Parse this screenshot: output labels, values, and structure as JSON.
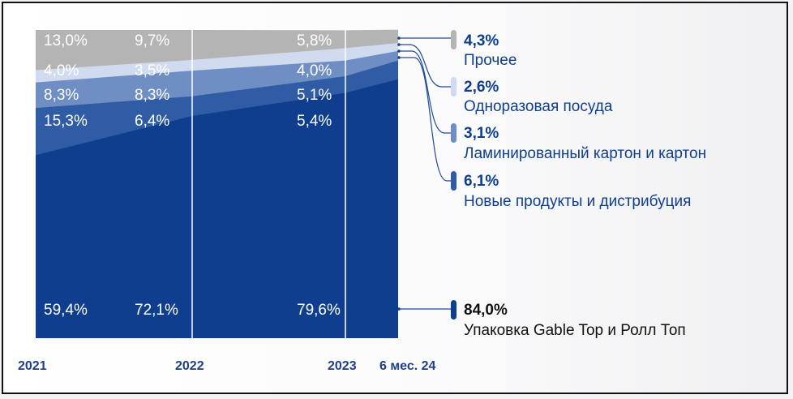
{
  "chart_data": {
    "type": "area",
    "stacked": true,
    "normalized_percent": true,
    "categories": [
      "2021",
      "2022",
      "2023",
      "6 мес. 24"
    ],
    "series": [
      {
        "name": "Упаковка Gable Top и Ролл Топ",
        "color": "#0f3e8e",
        "values": [
          59.4,
          72.1,
          79.6,
          84.0
        ],
        "labels": [
          "59,4%",
          "72,1%",
          "79,6%",
          "84,0%"
        ]
      },
      {
        "name": "Новые продукты и дистрибуция",
        "color": "#2f5ca5",
        "values": [
          15.3,
          6.4,
          5.4,
          6.1
        ],
        "labels": [
          "15,3%",
          "6,4%",
          "5,4%",
          "6,1%"
        ]
      },
      {
        "name": "Ламинированный картон и картон",
        "color": "#6e8ec4",
        "values": [
          8.3,
          8.3,
          5.1,
          3.1
        ],
        "labels": [
          "8,3%",
          "8,3%",
          "5,1%",
          "3,1%"
        ]
      },
      {
        "name": "Одноразовая посуда",
        "color": "#d0dbef",
        "values": [
          4.0,
          3.5,
          4.0,
          2.6
        ],
        "labels": [
          "4,0%",
          "3,5%",
          "4,0%",
          "2,6%"
        ]
      },
      {
        "name": "Прочее",
        "color": "#b4b4b4",
        "values": [
          13.0,
          9.7,
          5.8,
          4.3
        ],
        "labels": [
          "13,0%",
          "9,7%",
          "5,8%",
          "4,3%"
        ]
      }
    ],
    "ylim": [
      0,
      100
    ],
    "legend_position": "right",
    "legend_value_colors": [
      "#0f3e8e",
      "#0f3e8e",
      "#0f3e8e",
      "#0f3e8e",
      "#111111"
    ],
    "legend_name_colors": [
      "#0f3e8e",
      "#0f3e8e",
      "#0f3e8e",
      "#0f3e8e",
      "#111111"
    ]
  }
}
